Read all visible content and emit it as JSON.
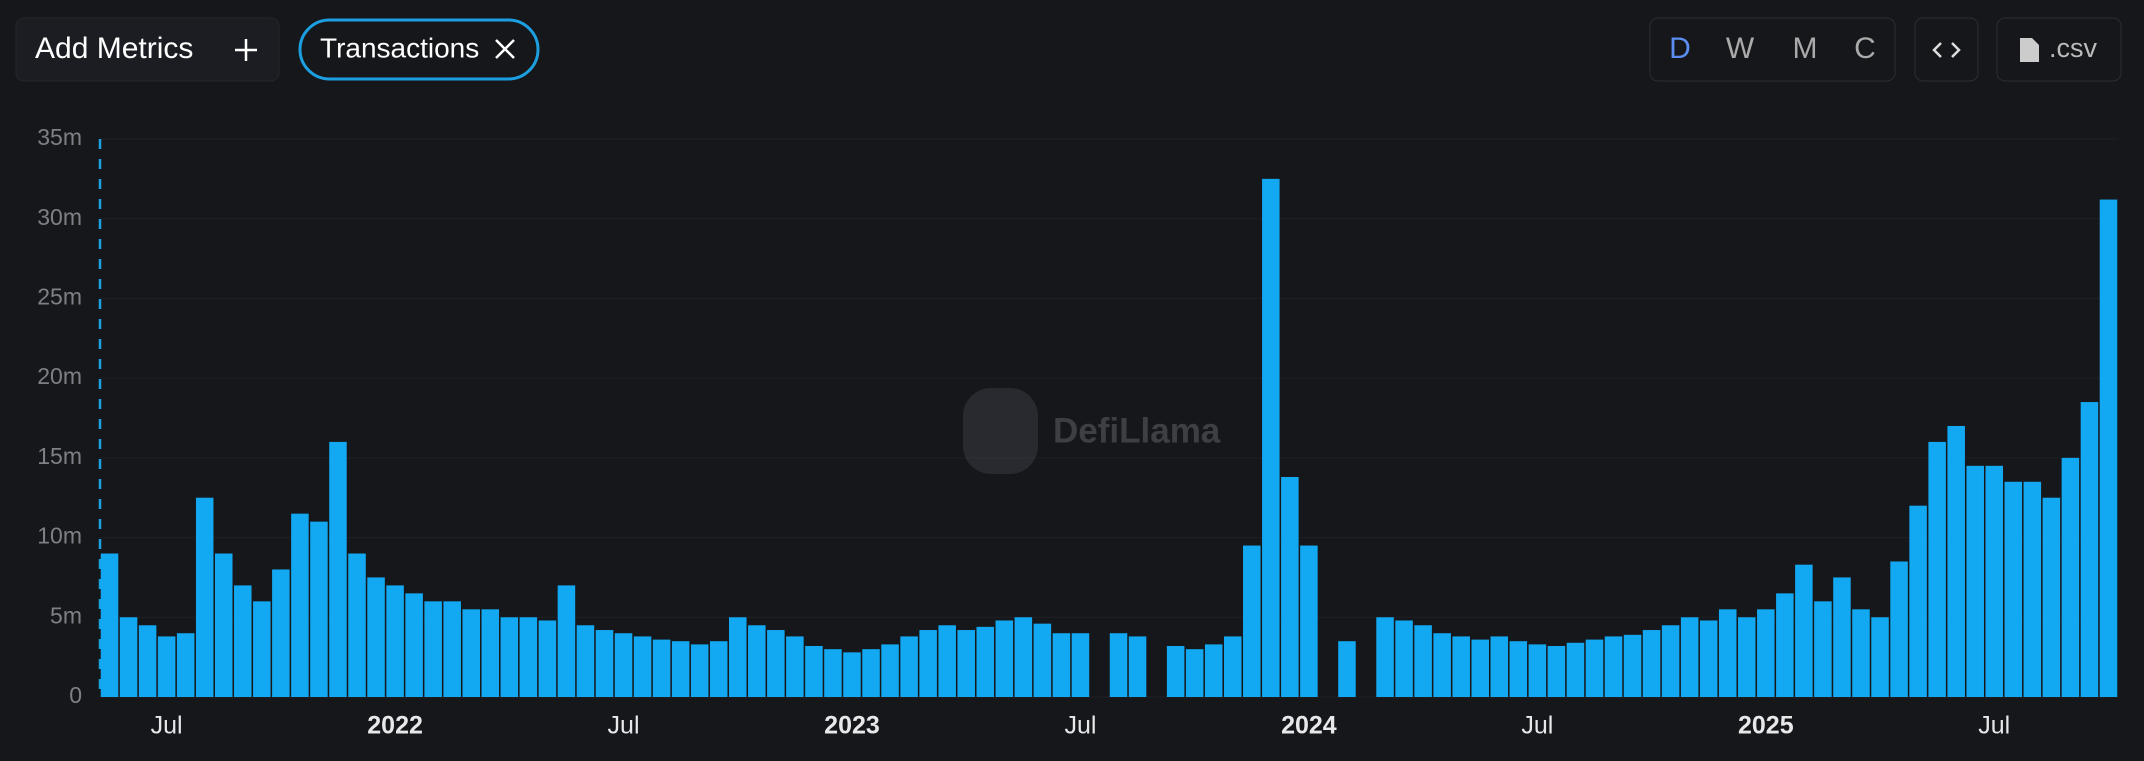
{
  "toolbar": {
    "add_metrics": "Add Metrics",
    "metric": "Transactions",
    "intervals": [
      "D",
      "W",
      "M",
      "C"
    ],
    "csv": ".csv"
  },
  "watermark": "DefiLlama",
  "chart_data": {
    "type": "bar",
    "color": "#12a9f2",
    "categories": [
      null,
      null,
      null,
      "Jul",
      null,
      null,
      null,
      null,
      null,
      null,
      null,
      null,
      null,
      null,
      null,
      "2022",
      null,
      null,
      null,
      null,
      null,
      null,
      null,
      null,
      null,
      null,
      null,
      "Jul",
      null,
      null,
      null,
      null,
      null,
      null,
      null,
      null,
      null,
      null,
      null,
      "2023",
      null,
      null,
      null,
      null,
      null,
      null,
      null,
      null,
      null,
      null,
      null,
      "Jul",
      null,
      null,
      null,
      null,
      null,
      null,
      null,
      null,
      null,
      null,
      null,
      "2024",
      null,
      null,
      null,
      null,
      null,
      null,
      null,
      null,
      null,
      null,
      null,
      "Jul",
      null,
      null,
      null,
      null,
      null,
      null,
      null,
      null,
      null,
      null,
      null,
      "2025",
      null,
      null,
      null,
      null,
      null,
      null,
      null,
      null,
      null,
      null,
      null,
      "Jul",
      null,
      null,
      null,
      null,
      null,
      null
    ],
    "values": [
      9,
      5,
      4.5,
      3.8,
      4,
      12.5,
      9,
      7,
      6,
      8,
      11.5,
      11,
      16,
      9,
      7.5,
      7,
      6.5,
      6,
      6,
      5.5,
      5.5,
      5,
      5,
      4.8,
      7,
      4.5,
      4.2,
      4,
      3.8,
      3.6,
      3.5,
      3.3,
      3.5,
      5,
      4.5,
      4.2,
      3.8,
      3.2,
      3,
      2.8,
      3,
      3.3,
      3.8,
      4.2,
      4.5,
      4.2,
      4.4,
      4.8,
      5,
      4.6,
      4,
      4,
      null,
      4,
      3.8,
      null,
      3.2,
      3,
      3.3,
      3.8,
      9.5,
      32.5,
      13.8,
      9.5,
      null,
      3.5,
      null,
      5,
      4.8,
      4.5,
      4,
      3.8,
      3.6,
      3.8,
      3.5,
      3.3,
      3.2,
      3.4,
      3.6,
      3.8,
      3.9,
      4.2,
      4.5,
      5,
      4.8,
      5.5,
      5,
      5.5,
      6.5,
      8.3,
      6,
      7.5,
      5.5,
      5,
      8.5,
      12,
      16,
      17,
      14.5,
      14.5,
      13.5,
      13.5,
      12.5,
      15,
      18.5,
      31.2
    ],
    "ylim": [
      0,
      35
    ],
    "yticks": [
      0,
      {
        "value": 5,
        "label": "5m"
      },
      {
        "value": 10,
        "label": "10m"
      },
      {
        "value": 15,
        "label": "15m"
      },
      {
        "value": 20,
        "label": "20m"
      },
      {
        "value": 25,
        "label": "25m"
      },
      {
        "value": 30,
        "label": "30m"
      },
      {
        "value": 35,
        "label": "35m"
      }
    ],
    "grid": true
  }
}
